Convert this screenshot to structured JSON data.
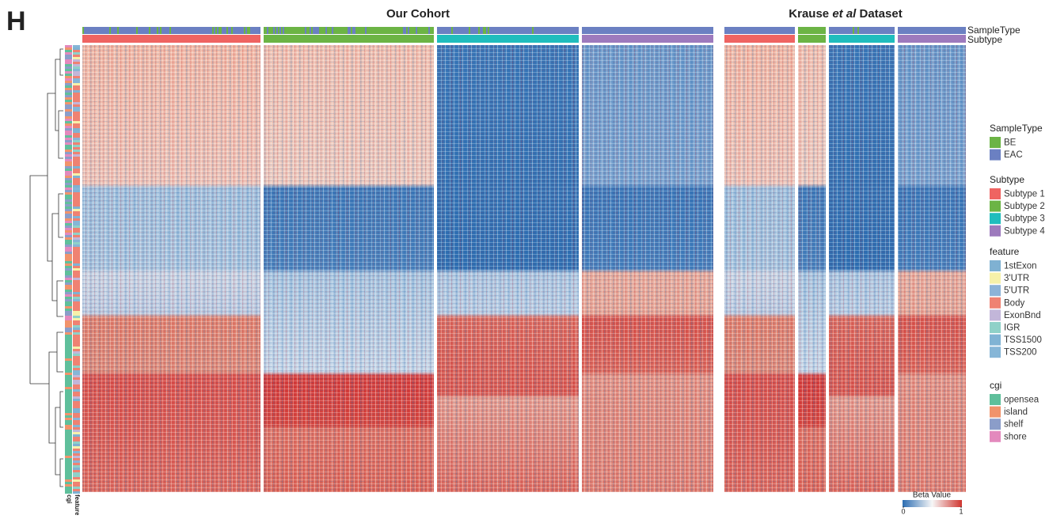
{
  "panel_label": "H",
  "groups": [
    {
      "title": "Our Cohort"
    },
    {
      "title_parts": [
        "Krause",
        "et al",
        "Dataset"
      ]
    }
  ],
  "column_annotations": [
    "SampleType",
    "Subtype"
  ],
  "row_annotations": [
    "cgi",
    "feature"
  ],
  "legend": [
    {
      "title": "SampleType",
      "items": [
        {
          "label": "BE",
          "color": "#6cb445"
        },
        {
          "label": "EAC",
          "color": "#6b80c2"
        }
      ]
    },
    {
      "title": "Subtype",
      "items": [
        {
          "label": "Subtype 1",
          "color": "#ef6462"
        },
        {
          "label": "Subtype 2",
          "color": "#6cb445"
        },
        {
          "label": "Subtype 3",
          "color": "#20bdbd"
        },
        {
          "label": "Subtype 4",
          "color": "#9d7abd"
        }
      ]
    },
    {
      "title": "feature",
      "items": [
        {
          "label": "1stExon",
          "color": "#7fb1d2"
        },
        {
          "label": "3'UTR",
          "color": "#f6f1a9"
        },
        {
          "label": "5'UTR",
          "color": "#8cb3d7"
        },
        {
          "label": "Body",
          "color": "#ef8272"
        },
        {
          "label": "ExonBnd",
          "color": "#c2b6d9"
        },
        {
          "label": "IGR",
          "color": "#8fd1c8"
        },
        {
          "label": "TSS1500",
          "color": "#80b3d4"
        },
        {
          "label": "TSS200",
          "color": "#86b6d7"
        }
      ]
    },
    {
      "title": "cgi",
      "items": [
        {
          "label": "opensea",
          "color": "#5fbf9b"
        },
        {
          "label": "island",
          "color": "#f1936b"
        },
        {
          "label": "shelf",
          "color": "#8b9dc9"
        },
        {
          "label": "shore",
          "color": "#e389bd"
        }
      ]
    }
  ],
  "colorbar": {
    "title": "Beta Value",
    "ticks": [
      0,
      1
    ]
  }
}
